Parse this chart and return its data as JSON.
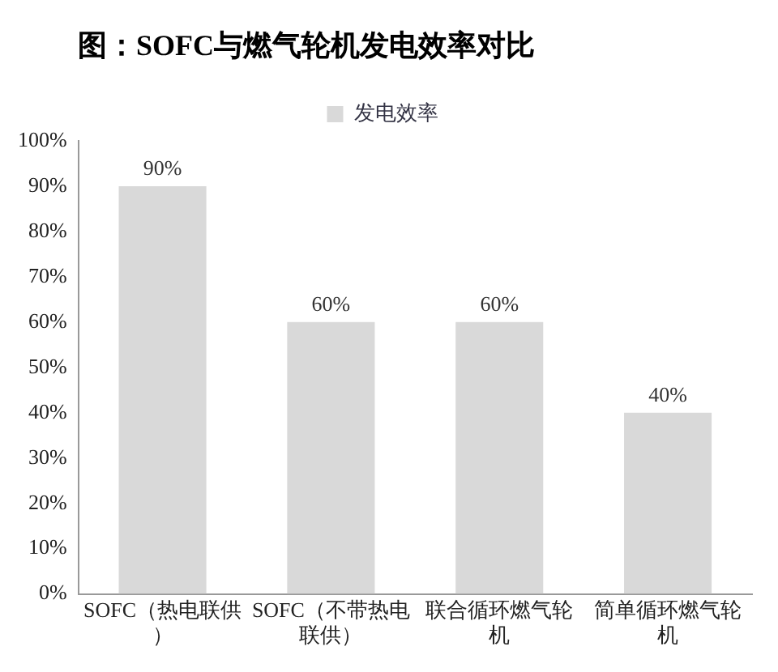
{
  "chart_data": {
    "type": "bar",
    "title": "图：SOFC与燃气轮机发电效率对比",
    "categories": [
      "SOFC（热电联供）",
      "SOFC（不带热电联供）",
      "联合循环燃气轮机",
      "简单循环燃气轮机"
    ],
    "series": [
      {
        "name": "发电效率",
        "color": "#d9d9d9",
        "values": [
          90,
          60,
          60,
          40
        ],
        "value_labels": [
          "90%",
          "60%",
          "60%",
          "40%"
        ]
      }
    ],
    "ylim": [
      0,
      100
    ],
    "yticks": [
      {
        "value": 0,
        "label": "0%"
      },
      {
        "value": 10,
        "label": "10%"
      },
      {
        "value": 20,
        "label": "20%"
      },
      {
        "value": 30,
        "label": "30%"
      },
      {
        "value": 40,
        "label": "40%"
      },
      {
        "value": 50,
        "label": "50%"
      },
      {
        "value": 60,
        "label": "60%"
      },
      {
        "value": 70,
        "label": "70%"
      },
      {
        "value": 80,
        "label": "80%"
      },
      {
        "value": 90,
        "label": "90%"
      },
      {
        "value": 100,
        "label": "100%"
      }
    ],
    "grid": false,
    "legend": "top"
  }
}
